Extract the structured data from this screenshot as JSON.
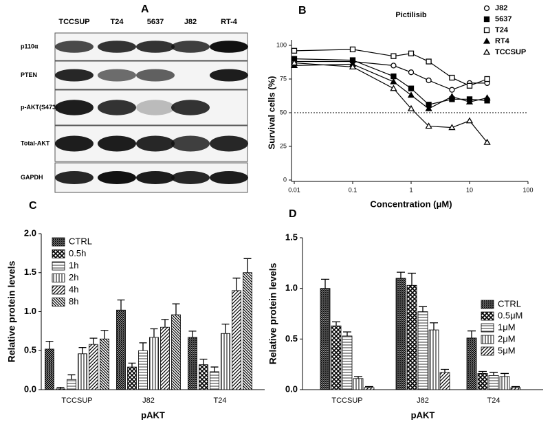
{
  "blot": {
    "panel": "A",
    "lanes": [
      "TCCSUP",
      "T24",
      "5637",
      "J82",
      "RT-4"
    ],
    "rows": [
      "p110α",
      "PTEN",
      "p-AKT(S473)",
      "Total-AKT",
      "GAPDH"
    ]
  },
  "chart_data": [
    {
      "type": "dose-response",
      "panel": "B",
      "title": "Pictilisib",
      "xlabel": "Concentration (μM)",
      "ylabel": "Survival cells (%)",
      "log_x": true,
      "x": [
        0.01,
        0.1,
        0.5,
        1,
        2,
        5,
        10,
        20
      ],
      "xlim": [
        0.01,
        100
      ],
      "xticks": [
        0.01,
        0.1,
        1,
        10,
        100
      ],
      "ylim": [
        0,
        100
      ],
      "yticks": [
        0,
        25,
        50,
        75,
        100
      ],
      "reference_line": 50,
      "series": [
        {
          "name": "J82",
          "color": "#000",
          "marker": "circle-open",
          "values": [
            88,
            88,
            85,
            80,
            74,
            67,
            72,
            72
          ]
        },
        {
          "name": "5637",
          "color": "#000",
          "marker": "square-filled",
          "values": [
            90,
            89,
            77,
            68,
            56,
            60,
            60,
            59
          ]
        },
        {
          "name": "T24",
          "color": "#000",
          "marker": "square-open",
          "values": [
            96,
            97,
            92,
            94,
            88,
            76,
            70,
            75
          ]
        },
        {
          "name": "RT4",
          "color": "#000",
          "marker": "triangle-filled",
          "values": [
            85,
            86,
            73,
            63,
            53,
            62,
            58,
            61
          ]
        },
        {
          "name": "TCCSUP",
          "color": "#000",
          "marker": "triangle-open",
          "values": [
            87,
            84,
            68,
            53,
            40,
            39,
            44,
            28
          ]
        }
      ]
    },
    {
      "type": "bar",
      "panel": "C",
      "xlabel": "pAKT",
      "ylabel": "Relative protein levels",
      "categories": [
        "TCCSUP",
        "J82",
        "T24"
      ],
      "ylim": [
        0,
        2
      ],
      "yticks": [
        {
          "value": 0,
          "label": "0.0"
        },
        {
          "value": 0.5,
          "label": "0.5"
        },
        {
          "value": 1,
          "label": "1.0"
        },
        {
          "value": 1.5,
          "label": "1.5"
        },
        {
          "value": 2,
          "label": "2.0"
        }
      ],
      "series": [
        {
          "name": "CTRL",
          "pattern": "crosshatch",
          "values": [
            0.52,
            1.02,
            0.67
          ],
          "errors": [
            0.1,
            0.13,
            0.08
          ]
        },
        {
          "name": "0.5h",
          "pattern": "checker",
          "values": [
            0.01,
            0.29,
            0.32
          ],
          "errors": [
            0.02,
            0.05,
            0.07
          ]
        },
        {
          "name": "1h",
          "pattern": "hlines",
          "values": [
            0.13,
            0.5,
            0.23
          ],
          "errors": [
            0.06,
            0.1,
            0.06
          ]
        },
        {
          "name": "2h",
          "pattern": "vlines",
          "values": [
            0.46,
            0.67,
            0.72
          ],
          "errors": [
            0.08,
            0.11,
            0.12
          ]
        },
        {
          "name": "4h",
          "pattern": "diag",
          "values": [
            0.58,
            0.8,
            1.27
          ],
          "errors": [
            0.08,
            0.1,
            0.16
          ]
        },
        {
          "name": "8h",
          "pattern": "diag2",
          "values": [
            0.65,
            0.96,
            1.5
          ],
          "errors": [
            0.11,
            0.14,
            0.18
          ]
        }
      ]
    },
    {
      "type": "bar",
      "panel": "D",
      "xlabel": "pAKT",
      "ylabel": "Relative protein levels",
      "categories": [
        "TCCSUP",
        "J82",
        "T24"
      ],
      "ylim": [
        0,
        1.5
      ],
      "yticks": [
        {
          "value": 0,
          "label": "0.0"
        },
        {
          "value": 0.5,
          "label": "0.5"
        },
        {
          "value": 1,
          "label": "1.0"
        },
        {
          "value": 1.5,
          "label": "1.5"
        }
      ],
      "series": [
        {
          "name": "CTRL",
          "pattern": "crosshatch",
          "values": [
            1,
            1.1,
            0.51
          ],
          "errors": [
            0.09,
            0.06,
            0.07
          ]
        },
        {
          "name": "0.5μM",
          "pattern": "checker",
          "values": [
            0.63,
            1.03,
            0.16
          ],
          "errors": [
            0.04,
            0.12,
            0.02
          ]
        },
        {
          "name": "1μM",
          "pattern": "hlines",
          "values": [
            0.53,
            0.77,
            0.14
          ],
          "errors": [
            0.04,
            0.05,
            0.03
          ]
        },
        {
          "name": "2μM",
          "pattern": "vlines",
          "values": [
            0.11,
            0.59,
            0.13
          ],
          "errors": [
            0.02,
            0.07,
            0.03
          ]
        },
        {
          "name": "5μM",
          "pattern": "diag",
          "values": [
            0.02,
            0.17,
            0.02
          ],
          "errors": [
            0.01,
            0.03,
            0.01
          ]
        }
      ]
    }
  ]
}
